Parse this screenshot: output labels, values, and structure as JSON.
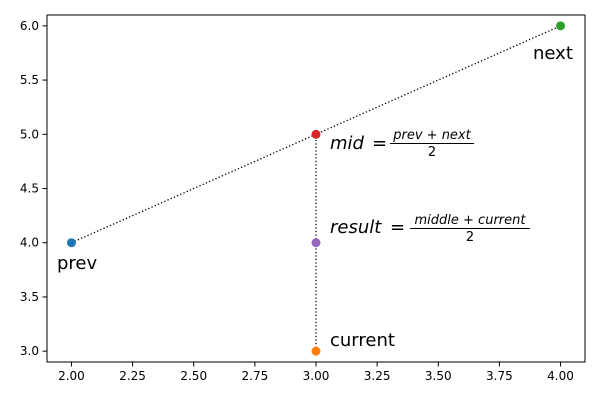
{
  "chart_data": {
    "type": "scatter",
    "title": "",
    "xlabel": "",
    "ylabel": "",
    "xlim": [
      1.9,
      4.1
    ],
    "ylim": [
      2.9,
      6.1
    ],
    "grid": false,
    "x_ticks": [
      "2.00",
      "2.25",
      "2.50",
      "2.75",
      "3.00",
      "3.25",
      "3.50",
      "3.75",
      "4.00"
    ],
    "y_ticks": [
      "3.0",
      "3.5",
      "4.0",
      "4.5",
      "5.0",
      "5.5",
      "6.0"
    ],
    "points": [
      {
        "key": "prev",
        "x": 2,
        "y": 4,
        "color": "#1f77b4",
        "label": "prev"
      },
      {
        "key": "current",
        "x": 3,
        "y": 3,
        "color": "#ff7f0e",
        "label": "current"
      },
      {
        "key": "next",
        "x": 4,
        "y": 6,
        "color": "#2ca02c",
        "label": "next"
      },
      {
        "key": "mid",
        "x": 3,
        "y": 5,
        "color": "#d62728"
      },
      {
        "key": "result",
        "x": 3,
        "y": 4,
        "color": "#9467bd"
      }
    ],
    "lines": [
      {
        "from": "prev",
        "to": "next",
        "style": "dotted",
        "color": "#000000"
      },
      {
        "from": "current",
        "to": "mid",
        "style": "dotted",
        "color": "#000000"
      }
    ],
    "annotations": {
      "mid": {
        "lhs": "mid",
        "eq": "=",
        "numerator": "prev + next",
        "denominator": "2"
      },
      "result": {
        "lhs": "result",
        "eq": "=",
        "numerator": "middle + current",
        "denominator": "2"
      }
    }
  }
}
